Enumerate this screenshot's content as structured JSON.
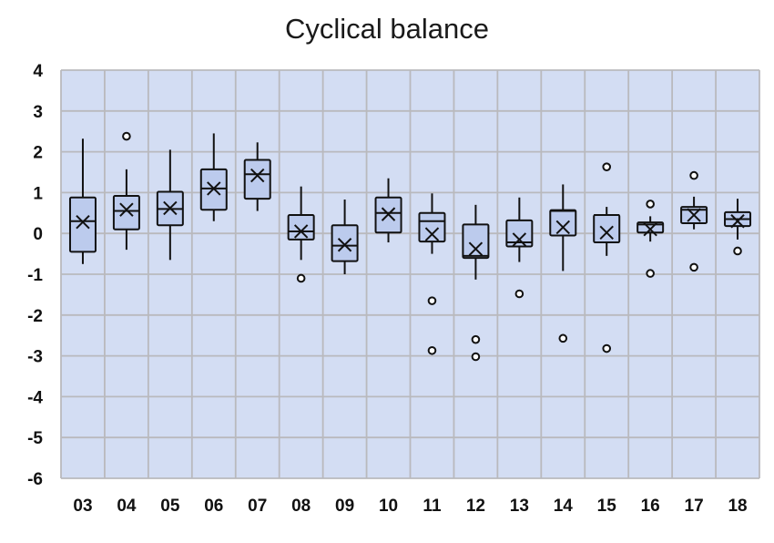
{
  "chart_data": {
    "type": "box",
    "title": "Cyclical balance",
    "xlabel": "",
    "ylabel": "",
    "ylim": [
      -6,
      4
    ],
    "yticks": [
      4,
      3,
      2,
      1,
      0,
      -1,
      -2,
      -3,
      -4,
      -5,
      -6
    ],
    "grid": true,
    "colors": {
      "plot_bg": "#d3ddf3",
      "grid": "#b9b9bd",
      "box_fill": "#bccbed",
      "stroke": "#111111"
    },
    "categories": [
      "03",
      "04",
      "05",
      "06",
      "07",
      "08",
      "09",
      "10",
      "11",
      "12",
      "13",
      "14",
      "15",
      "16",
      "17",
      "18"
    ],
    "boxes": [
      {
        "label": "03",
        "min": -0.75,
        "q1": -0.45,
        "median": 0.3,
        "mean": 0.28,
        "q3": 0.88,
        "max": 2.32,
        "outliers": []
      },
      {
        "label": "04",
        "min": -0.4,
        "q1": 0.1,
        "median": 0.55,
        "mean": 0.58,
        "q3": 0.92,
        "max": 1.57,
        "outliers": [
          2.38
        ]
      },
      {
        "label": "05",
        "min": -0.65,
        "q1": 0.2,
        "median": 0.6,
        "mean": 0.62,
        "q3": 1.02,
        "max": 2.05,
        "outliers": []
      },
      {
        "label": "06",
        "min": 0.3,
        "q1": 0.58,
        "median": 1.1,
        "mean": 1.1,
        "q3": 1.57,
        "max": 2.45,
        "outliers": []
      },
      {
        "label": "07",
        "min": 0.55,
        "q1": 0.85,
        "median": 1.45,
        "mean": 1.42,
        "q3": 1.8,
        "max": 2.23,
        "outliers": []
      },
      {
        "label": "08",
        "min": -0.65,
        "q1": -0.15,
        "median": 0.05,
        "mean": 0.05,
        "q3": 0.45,
        "max": 1.15,
        "outliers": [
          -1.1
        ]
      },
      {
        "label": "09",
        "min": -1.0,
        "q1": -0.68,
        "median": -0.3,
        "mean": -0.28,
        "q3": 0.2,
        "max": 0.83,
        "outliers": []
      },
      {
        "label": "10",
        "min": -0.22,
        "q1": 0.02,
        "median": 0.5,
        "mean": 0.47,
        "q3": 0.88,
        "max": 1.35,
        "outliers": []
      },
      {
        "label": "11",
        "min": -0.5,
        "q1": -0.2,
        "median": 0.3,
        "mean": -0.02,
        "q3": 0.5,
        "max": 0.98,
        "outliers": [
          -1.65,
          -2.87
        ]
      },
      {
        "label": "12",
        "min": -1.13,
        "q1": -0.6,
        "median": -0.55,
        "mean": -0.38,
        "q3": 0.22,
        "max": 0.7,
        "outliers": [
          -2.6,
          -3.02
        ]
      },
      {
        "label": "13",
        "min": -0.7,
        "q1": -0.32,
        "median": -0.22,
        "mean": -0.15,
        "q3": 0.32,
        "max": 0.88,
        "outliers": [
          -1.48
        ]
      },
      {
        "label": "14",
        "min": -0.92,
        "q1": -0.05,
        "median": 0.55,
        "mean": 0.15,
        "q3": 0.57,
        "max": 1.2,
        "outliers": [
          -2.57
        ]
      },
      {
        "label": "15",
        "min": -0.55,
        "q1": -0.22,
        "median": 0.45,
        "mean": 0.02,
        "q3": 0.45,
        "max": 0.65,
        "outliers": [
          1.63,
          -2.82
        ]
      },
      {
        "label": "16",
        "min": -0.2,
        "q1": 0.02,
        "median": 0.22,
        "mean": 0.1,
        "q3": 0.27,
        "max": 0.42,
        "outliers": [
          0.72,
          -0.98
        ]
      },
      {
        "label": "17",
        "min": 0.1,
        "q1": 0.25,
        "median": 0.58,
        "mean": 0.45,
        "q3": 0.65,
        "max": 0.9,
        "outliers": [
          1.42,
          -0.83
        ]
      },
      {
        "label": "18",
        "min": -0.15,
        "q1": 0.18,
        "median": 0.35,
        "mean": 0.3,
        "q3": 0.52,
        "max": 0.85,
        "outliers": [
          -0.43
        ]
      }
    ]
  }
}
